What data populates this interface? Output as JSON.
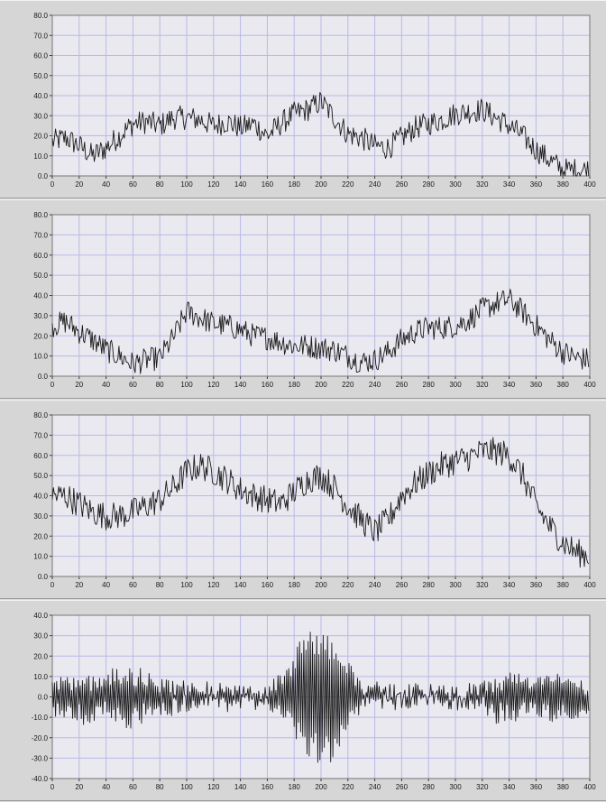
{
  "theme": {
    "plot_bg": "#e9e9ef",
    "grid": "#b9b9e8",
    "trace": "#1a1a1a",
    "panel_bg": "#d6d6d6"
  },
  "chart_data": [
    {
      "type": "line",
      "title": "",
      "xlabel": "",
      "ylabel": "",
      "xlim": [
        0,
        400
      ],
      "ylim": [
        0,
        80
      ],
      "grid": true,
      "x_ticks": [
        "0",
        "20",
        "40",
        "60",
        "80",
        "100",
        "120",
        "140",
        "160",
        "180",
        "200",
        "220",
        "240",
        "260",
        "280",
        "300",
        "320",
        "340",
        "360",
        "380",
        "400"
      ],
      "y_ticks": [
        "0.0",
        "10.0",
        "20.0",
        "30.0",
        "40.0",
        "50.0",
        "60.0",
        "70.0",
        "80.0"
      ],
      "series": [
        {
          "x": [
            0,
            10,
            20,
            30,
            40,
            50,
            60,
            70,
            80,
            90,
            100,
            110,
            120,
            130,
            140,
            150,
            160,
            170,
            180,
            190,
            200,
            210,
            220,
            230,
            240,
            250,
            260,
            270,
            280,
            290,
            300,
            310,
            320,
            330,
            340,
            350,
            360,
            370,
            380,
            390,
            400
          ],
          "y": [
            17,
            19,
            15,
            10,
            14,
            20,
            26,
            27,
            25,
            29,
            29,
            28,
            25,
            27,
            24,
            26,
            20,
            26,
            31,
            33,
            37,
            29,
            21,
            19,
            15,
            14,
            19,
            24,
            26,
            28,
            31,
            32,
            33,
            29,
            25,
            20,
            13,
            8,
            3,
            3,
            3
          ],
          "noise": 6
        }
      ]
    },
    {
      "type": "line",
      "title": "",
      "xlabel": "",
      "ylabel": "",
      "xlim": [
        0,
        400
      ],
      "ylim": [
        0,
        80
      ],
      "grid": true,
      "x_ticks": [
        "0",
        "20",
        "40",
        "60",
        "80",
        "100",
        "120",
        "140",
        "160",
        "180",
        "200",
        "220",
        "240",
        "260",
        "280",
        "300",
        "320",
        "340",
        "360",
        "380",
        "400"
      ],
      "y_ticks": [
        "0.0",
        "10.0",
        "20.0",
        "30.0",
        "40.0",
        "50.0",
        "60.0",
        "70.0",
        "80.0"
      ],
      "series": [
        {
          "x": [
            0,
            10,
            20,
            30,
            40,
            50,
            60,
            70,
            80,
            90,
            100,
            110,
            120,
            130,
            140,
            150,
            160,
            170,
            180,
            190,
            200,
            210,
            220,
            230,
            240,
            250,
            260,
            270,
            280,
            290,
            300,
            310,
            320,
            330,
            340,
            350,
            360,
            370,
            380,
            390,
            400
          ],
          "y": [
            25,
            27,
            22,
            18,
            13,
            10,
            6,
            8,
            9,
            19,
            32,
            29,
            26,
            25,
            23,
            20,
            19,
            17,
            15,
            15,
            14,
            13,
            10,
            7,
            8,
            12,
            18,
            22,
            24,
            24,
            25,
            28,
            33,
            36,
            38,
            32,
            25,
            18,
            12,
            9,
            8
          ],
          "noise": 6
        }
      ]
    },
    {
      "type": "line",
      "title": "",
      "xlabel": "",
      "ylabel": "",
      "xlim": [
        0,
        400
      ],
      "ylim": [
        0,
        80
      ],
      "grid": true,
      "x_ticks": [
        "0",
        "20",
        "40",
        "60",
        "80",
        "100",
        "120",
        "140",
        "160",
        "180",
        "200",
        "220",
        "240",
        "260",
        "280",
        "300",
        "320",
        "340",
        "360",
        "380",
        "400"
      ],
      "y_ticks": [
        "0.0",
        "10.0",
        "20.0",
        "30.0",
        "40.0",
        "50.0",
        "60.0",
        "70.0",
        "80.0"
      ],
      "series": [
        {
          "x": [
            0,
            10,
            20,
            30,
            40,
            50,
            60,
            70,
            80,
            90,
            100,
            110,
            120,
            130,
            140,
            150,
            160,
            170,
            180,
            190,
            200,
            210,
            220,
            230,
            240,
            250,
            260,
            270,
            280,
            290,
            300,
            310,
            320,
            330,
            340,
            350,
            360,
            370,
            380,
            390,
            400
          ],
          "y": [
            40,
            40,
            36,
            32,
            30,
            30,
            32,
            35,
            38,
            44,
            52,
            55,
            52,
            48,
            43,
            40,
            38,
            36,
            42,
            48,
            50,
            44,
            35,
            28,
            22,
            28,
            40,
            46,
            51,
            55,
            57,
            59,
            62,
            62,
            60,
            50,
            35,
            25,
            17,
            12,
            10
          ],
          "noise": 7
        }
      ]
    },
    {
      "type": "line",
      "title": "",
      "xlabel": "",
      "ylabel": "",
      "xlim": [
        0,
        400
      ],
      "ylim": [
        -40,
        40
      ],
      "grid": true,
      "x_ticks": [
        "0",
        "20",
        "40",
        "60",
        "80",
        "100",
        "120",
        "140",
        "160",
        "180",
        "200",
        "220",
        "240",
        "260",
        "280",
        "300",
        "320",
        "340",
        "360",
        "380",
        "400"
      ],
      "y_ticks": [
        "-40.0",
        "-30.0",
        "-20.0",
        "-10.0",
        "0.0",
        "10.0",
        "20.0",
        "30.0",
        "40.0"
      ],
      "series": [
        {
          "x": [
            0,
            10,
            20,
            30,
            40,
            50,
            60,
            70,
            80,
            90,
            100,
            110,
            120,
            130,
            140,
            150,
            160,
            170,
            180,
            190,
            200,
            210,
            220,
            230,
            240,
            250,
            260,
            270,
            280,
            290,
            300,
            310,
            320,
            330,
            340,
            350,
            360,
            370,
            380,
            390,
            400
          ],
          "y": [
            0,
            0,
            0,
            0,
            0,
            0,
            0,
            0,
            0,
            0,
            0,
            0,
            0,
            0,
            0,
            0,
            0,
            0,
            0,
            0,
            0,
            0,
            0,
            0,
            0,
            0,
            0,
            0,
            0,
            0,
            0,
            0,
            0,
            0,
            0,
            0,
            0,
            0,
            0,
            0,
            0
          ],
          "amplitude": [
            8,
            10,
            11,
            9,
            10,
            12,
            14,
            10,
            8,
            6,
            5,
            4,
            4,
            4,
            3,
            3,
            3,
            10,
            22,
            30,
            36,
            28,
            16,
            7,
            4,
            3,
            3,
            3,
            3,
            3,
            3,
            3,
            5,
            9,
            12,
            9,
            8,
            10,
            9,
            8,
            7
          ],
          "noise": 4
        }
      ]
    }
  ]
}
